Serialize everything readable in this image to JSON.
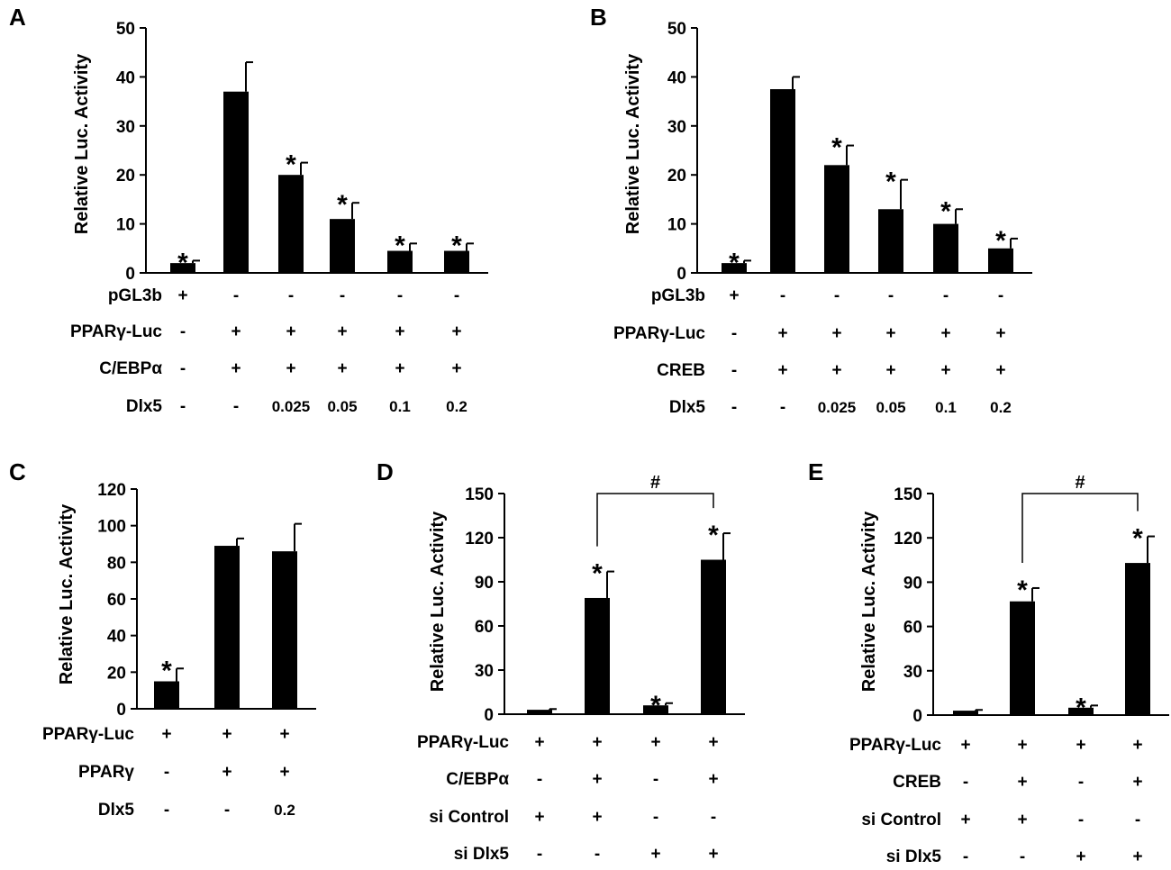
{
  "colors": {
    "bar": "#000000",
    "axis": "#000000",
    "background": "#ffffff"
  },
  "chart_data": [
    {
      "panel": "A",
      "type": "bar",
      "ylabel": "Relative Luc. Activity",
      "ylim": [
        0,
        50
      ],
      "yticks": [
        0,
        10,
        20,
        30,
        40,
        50
      ],
      "values": [
        2,
        37,
        20,
        11,
        4.5,
        4.5
      ],
      "errors": [
        0.5,
        6,
        2.5,
        3.3,
        1.5,
        1.5
      ],
      "significance": [
        "*",
        "",
        "*",
        "*",
        "*",
        "*"
      ],
      "conditions": [
        {
          "label": "pGL3b",
          "values": [
            "+",
            "-",
            "-",
            "-",
            "-",
            "-"
          ]
        },
        {
          "label": "PPARγ-Luc",
          "values": [
            "-",
            "+",
            "+",
            "+",
            "+",
            "+"
          ]
        },
        {
          "label": "C/EBPα",
          "values": [
            "-",
            "+",
            "+",
            "+",
            "+",
            "+"
          ]
        },
        {
          "label": "Dlx5",
          "values": [
            "-",
            "-",
            "0.025",
            "0.05",
            "0.1",
            "0.2"
          ]
        }
      ],
      "bracket": null
    },
    {
      "panel": "B",
      "type": "bar",
      "ylabel": "Relative Luc. Activity",
      "ylim": [
        0,
        50
      ],
      "yticks": [
        0,
        10,
        20,
        30,
        40,
        50
      ],
      "values": [
        2,
        37.5,
        22,
        13,
        10,
        5
      ],
      "errors": [
        0.5,
        2.5,
        4,
        6,
        3,
        2
      ],
      "significance": [
        "*",
        "",
        "*",
        "*",
        "*",
        "*"
      ],
      "conditions": [
        {
          "label": "pGL3b",
          "values": [
            "+",
            "-",
            "-",
            "-",
            "-",
            "-"
          ]
        },
        {
          "label": "PPARγ-Luc",
          "values": [
            "-",
            "+",
            "+",
            "+",
            "+",
            "+"
          ]
        },
        {
          "label": "CREB",
          "values": [
            "-",
            "+",
            "+",
            "+",
            "+",
            "+"
          ]
        },
        {
          "label": "Dlx5",
          "values": [
            "-",
            "-",
            "0.025",
            "0.05",
            "0.1",
            "0.2"
          ]
        }
      ],
      "bracket": null
    },
    {
      "panel": "C",
      "type": "bar",
      "ylabel": "Relative Luc. Activity",
      "ylim": [
        0,
        120
      ],
      "yticks": [
        0,
        20,
        40,
        60,
        80,
        100,
        120
      ],
      "values": [
        15,
        89,
        86
      ],
      "errors": [
        7,
        4,
        15
      ],
      "significance": [
        "*",
        "",
        ""
      ],
      "conditions": [
        {
          "label": "PPARγ-Luc",
          "values": [
            "+",
            "+",
            "+"
          ]
        },
        {
          "label": "PPARγ",
          "values": [
            "-",
            "+",
            "+"
          ]
        },
        {
          "label": "Dlx5",
          "values": [
            "-",
            "-",
            "0.2"
          ]
        }
      ],
      "bracket": null
    },
    {
      "panel": "D",
      "type": "bar",
      "ylabel": "Relative Luc. Activity",
      "ylim": [
        0,
        150
      ],
      "yticks": [
        0,
        30,
        60,
        90,
        120,
        150
      ],
      "values": [
        3,
        79,
        6,
        105
      ],
      "errors": [
        0.5,
        18,
        1.5,
        18
      ],
      "significance": [
        "",
        "*",
        "*",
        "*"
      ],
      "conditions": [
        {
          "label": "PPARγ-Luc",
          "values": [
            "+",
            "+",
            "+",
            "+"
          ]
        },
        {
          "label": "C/EBPα",
          "values": [
            "-",
            "+",
            "-",
            "+"
          ]
        },
        {
          "label": "si Control",
          "values": [
            "+",
            "+",
            "-",
            "-"
          ]
        },
        {
          "label": "si Dlx5",
          "values": [
            "-",
            "-",
            "+",
            "+"
          ]
        }
      ],
      "bracket": {
        "from": 1,
        "to": 3,
        "label": "#"
      }
    },
    {
      "panel": "E",
      "type": "bar",
      "ylabel": "Relative Luc. Activity",
      "ylim": [
        0,
        150
      ],
      "yticks": [
        0,
        30,
        60,
        90,
        120,
        150
      ],
      "values": [
        3,
        77,
        5,
        103
      ],
      "errors": [
        0.5,
        9,
        1.5,
        18
      ],
      "significance": [
        "",
        "*",
        "*",
        "*"
      ],
      "conditions": [
        {
          "label": "PPARγ-Luc",
          "values": [
            "+",
            "+",
            "+",
            "+"
          ]
        },
        {
          "label": "CREB",
          "values": [
            "-",
            "+",
            "-",
            "+"
          ]
        },
        {
          "label": "si Control",
          "values": [
            "+",
            "+",
            "-",
            "-"
          ]
        },
        {
          "label": "si Dlx5",
          "values": [
            "-",
            "-",
            "+",
            "+"
          ]
        }
      ],
      "bracket": {
        "from": 1,
        "to": 3,
        "label": "#"
      }
    }
  ]
}
